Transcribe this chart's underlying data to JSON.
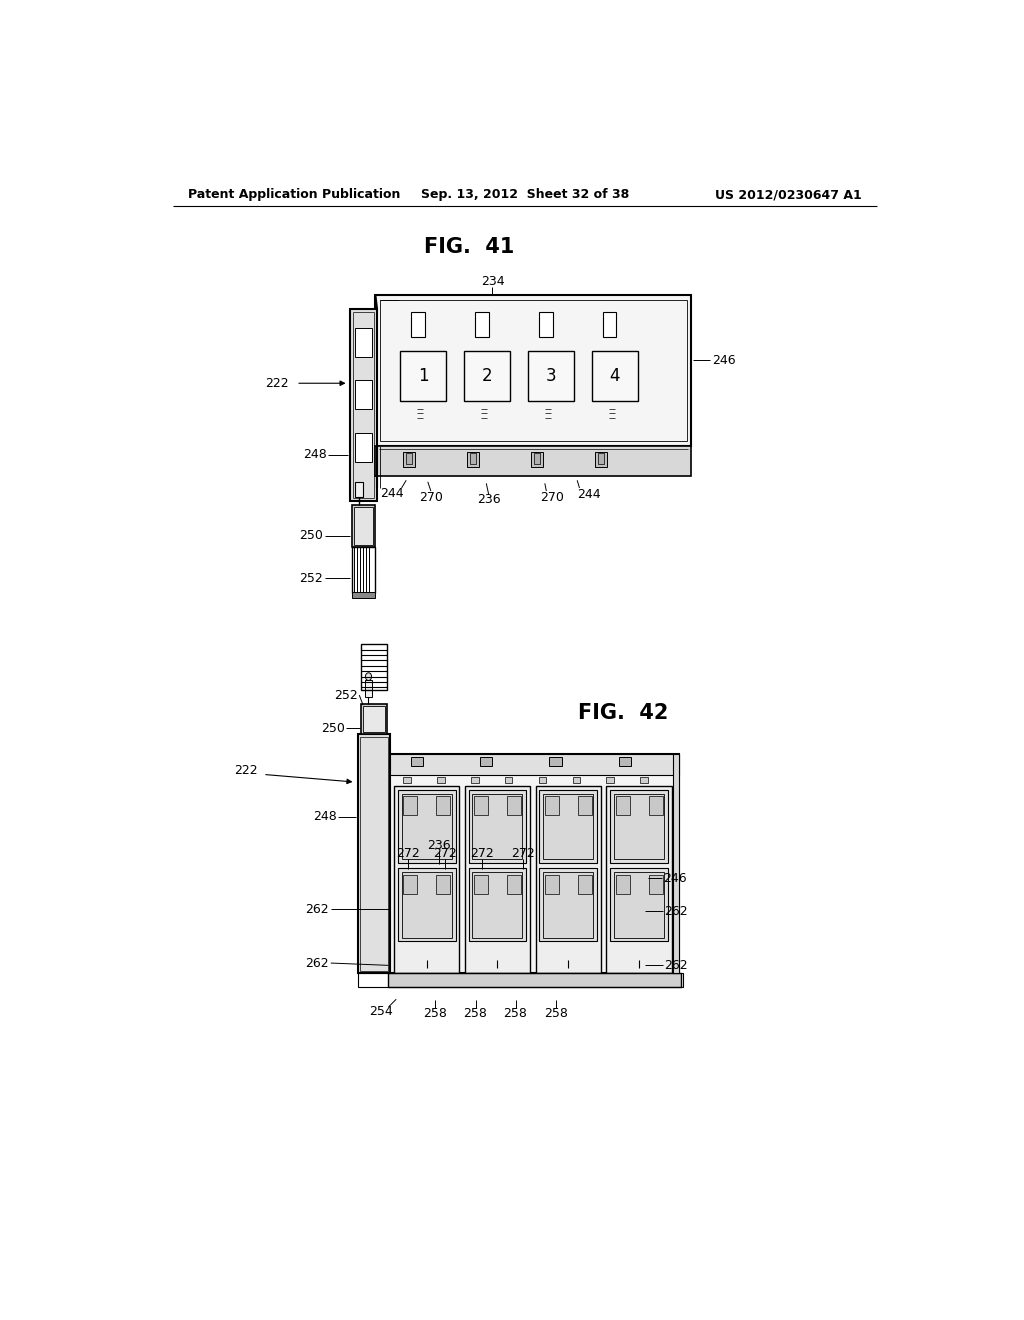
{
  "header_left": "Patent Application Publication",
  "header_mid": "Sep. 13, 2012  Sheet 32 of 38",
  "header_right": "US 2012/0230647 A1",
  "fig41_title": "FIG.  41",
  "fig42_title": "FIG.  42",
  "bg_color": "#ffffff",
  "lc": "#000000",
  "gray1": "#e8e8e8",
  "gray2": "#d0d0d0",
  "gray3": "#b0b0b0",
  "gray4": "#c8c8c8",
  "gray5": "#f4f4f4"
}
